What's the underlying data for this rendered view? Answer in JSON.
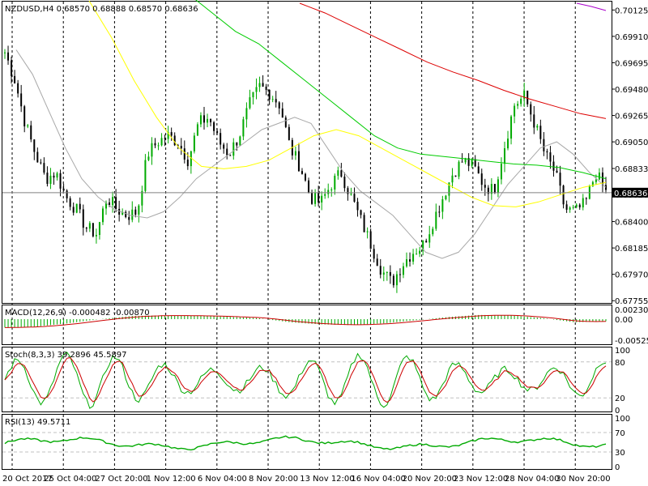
{
  "chart_data": {
    "type": "candlestick",
    "symbol_header": {
      "text": "NZDUSD,H4  0.68570 0.68888 0.68570 0.68636"
    },
    "price_axis": {
      "ticks": [
        "0.70125",
        "0.69910",
        "0.69695",
        "0.69480",
        "0.69265",
        "0.69050",
        "0.68833",
        "0.68620",
        "0.68400",
        "0.68185",
        "0.67970",
        "0.67755"
      ],
      "tick_values": [
        0.70125,
        0.6991,
        0.69695,
        0.6948,
        0.69265,
        0.6905,
        0.68833,
        0.6862,
        0.684,
        0.68185,
        0.6797,
        0.67755
      ],
      "range": [
        0.6775,
        0.7018
      ],
      "current_price": "0.68636",
      "current_value": 0.68636
    },
    "time_axis": {
      "labels": [
        "20 Oct 2017",
        "25 Oct 04:00",
        "27 Oct 20:00",
        "1 Nov 12:00",
        "6 Nov 04:00",
        "8 Nov 20:00",
        "13 Nov 12:00",
        "16 Nov 04:00",
        "20 Nov 20:00",
        "23 Nov 12:00",
        "28 Nov 04:00",
        "30 Nov 20:00"
      ]
    },
    "price_path": [
      0.6978,
      0.6955,
      0.692,
      0.6895,
      0.6875,
      0.688,
      0.686,
      0.685,
      0.6835,
      0.683,
      0.686,
      0.685,
      0.6845,
      0.6848,
      0.6895,
      0.6905,
      0.691,
      0.6905,
      0.689,
      0.692,
      0.6925,
      0.6905,
      0.6895,
      0.691,
      0.6935,
      0.695,
      0.6945,
      0.6935,
      0.69,
      0.6885,
      0.686,
      0.6855,
      0.687,
      0.688,
      0.686,
      0.684,
      0.682,
      0.68,
      0.679,
      0.6805,
      0.6815,
      0.682,
      0.684,
      0.686,
      0.688,
      0.689,
      0.6885,
      0.687,
      0.6865,
      0.69,
      0.6935,
      0.6942,
      0.692,
      0.6895,
      0.688,
      0.685,
      0.6848,
      0.6855,
      0.688,
      0.6864
    ],
    "series": [
      {
        "name": "MA fast",
        "color": "#a8a8a8",
        "values": [
          0.698,
          0.696,
          0.693,
          0.69,
          0.6875,
          0.686,
          0.685,
          0.6845,
          0.6843,
          0.6848,
          0.686,
          0.6875,
          0.6885,
          0.6895,
          0.6905,
          0.6915,
          0.692,
          0.6925,
          0.692,
          0.69,
          0.688,
          0.6865,
          0.6855,
          0.6845,
          0.683,
          0.6815,
          0.681,
          0.6815,
          0.683,
          0.685,
          0.687,
          0.6885,
          0.69,
          0.6905,
          0.6895,
          0.688,
          0.6868
        ]
      },
      {
        "name": "MA mid",
        "color": "#ffff00",
        "values": [
          0.702,
          0.699,
          0.6955,
          0.6925,
          0.69,
          0.6885,
          0.6883,
          0.6885,
          0.689,
          0.69,
          0.691,
          0.6915,
          0.691,
          0.69,
          0.689,
          0.688,
          0.687,
          0.686,
          0.6853,
          0.6852,
          0.6856,
          0.6862,
          0.6868,
          0.6872
        ]
      },
      {
        "name": "MA slow",
        "color": "#00cc00",
        "values": [
          0.7035,
          0.7025,
          0.701,
          0.6995,
          0.6985,
          0.697,
          0.6955,
          0.694,
          0.6925,
          0.691,
          0.69,
          0.6895,
          0.6893,
          0.6891,
          0.6889,
          0.6887,
          0.6886,
          0.6884,
          0.688,
          0.6875
        ]
      },
      {
        "name": "MA long",
        "color": "#dd0000",
        "values": [
          0.7018,
          0.701,
          0.7,
          0.699,
          0.698,
          0.697,
          0.6962,
          0.6955,
          0.6947,
          0.694,
          0.6934,
          0.6928,
          0.6924
        ]
      }
    ],
    "macd": {
      "label": "MACD(12,26,9) -0.000482 -0.00870",
      "ticks": [
        "0.002309",
        "0.00",
        "-0.005258"
      ]
    },
    "stoch": {
      "label": "Stoch(8,3,3) 39.2896 45.5897",
      "ticks": [
        "100",
        "80",
        "20",
        "0"
      ],
      "levels": [
        80,
        20
      ]
    },
    "rsi": {
      "label": "RSI(13) 49.5711",
      "ticks": [
        "100",
        "70",
        "30",
        "0"
      ],
      "levels": [
        70,
        30
      ]
    }
  }
}
